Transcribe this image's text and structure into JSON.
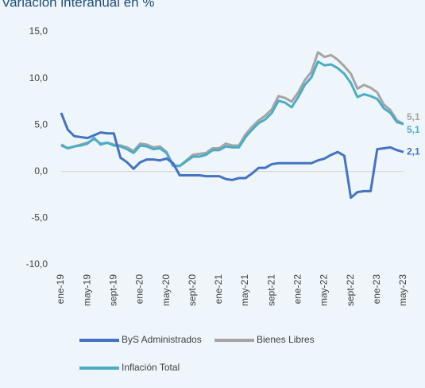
{
  "chart_data": {
    "type": "line",
    "title": "Variación interanual en %",
    "categories": [
      "ene-19",
      null,
      null,
      null,
      "may-19",
      null,
      null,
      null,
      "sept-19",
      null,
      null,
      null,
      "ene-20",
      null,
      null,
      null,
      "may-20",
      null,
      null,
      null,
      "sept-20",
      null,
      null,
      null,
      "ene-21",
      null,
      null,
      null,
      "may-21",
      null,
      null,
      null,
      "sept-21",
      null,
      null,
      null,
      "ene-22",
      null,
      null,
      null,
      "may-22",
      null,
      null,
      null,
      "sept-22",
      null,
      null,
      null,
      "ene-23",
      null,
      null,
      null,
      "may-23"
    ],
    "ylim": [
      -10,
      15
    ],
    "yticks": [
      {
        "value": -10,
        "label": "-10,0"
      },
      {
        "value": -5,
        "label": "-5,0"
      },
      {
        "value": 0,
        "label": "0,0"
      },
      {
        "value": 5,
        "label": "5,0"
      },
      {
        "value": 10,
        "label": "10,0"
      },
      {
        "value": 15,
        "label": "15,0"
      }
    ],
    "series": [
      {
        "name": "ByS Administrados",
        "color": "#4472c4",
        "values": [
          6.3,
          4.5,
          3.8,
          3.7,
          3.6,
          3.9,
          4.2,
          4.1,
          4.1,
          1.5,
          1.0,
          0.3,
          1.0,
          1.3,
          1.3,
          1.2,
          1.4,
          0.9,
          -0.4,
          -0.4,
          -0.4,
          -0.4,
          -0.5,
          -0.5,
          -0.5,
          -0.8,
          -0.9,
          -0.7,
          -0.7,
          -0.2,
          0.4,
          0.4,
          0.8,
          0.9,
          0.9,
          0.9,
          0.9,
          0.9,
          0.9,
          1.2,
          1.4,
          1.8,
          2.1,
          1.7,
          -2.8,
          -2.2,
          -2.1,
          -2.1,
          2.4,
          2.5,
          2.6,
          2.3,
          2.1
        ],
        "value_labels": {
          "52": "2,1"
        }
      },
      {
        "name": "Bienes Libres",
        "color": "#a5a5a5",
        "values": [
          2.8,
          2.5,
          2.7,
          2.9,
          3.1,
          3.5,
          3.0,
          3.1,
          2.9,
          2.8,
          2.6,
          2.2,
          3.0,
          2.9,
          2.6,
          2.7,
          2.1,
          0.7,
          0.6,
          1.2,
          1.8,
          1.9,
          2.0,
          2.5,
          2.5,
          3.0,
          2.8,
          2.8,
          4.0,
          4.8,
          5.5,
          6.0,
          6.7,
          8.1,
          7.9,
          7.5,
          8.5,
          9.8,
          10.7,
          12.8,
          12.3,
          12.5,
          12.0,
          11.3,
          10.5,
          8.9,
          9.3,
          9.0,
          8.5,
          7.2,
          6.6,
          5.5,
          5.1
        ],
        "value_labels": {
          "52": "5,1"
        }
      },
      {
        "name": "Inflación Total",
        "color": "#4bacc6",
        "values": [
          2.9,
          2.5,
          2.7,
          2.8,
          3.0,
          3.6,
          2.9,
          3.1,
          2.8,
          2.7,
          2.4,
          2.0,
          2.8,
          2.7,
          2.4,
          2.5,
          2.0,
          0.6,
          0.6,
          1.1,
          1.6,
          1.6,
          1.8,
          2.3,
          2.3,
          2.7,
          2.6,
          2.6,
          3.7,
          4.5,
          5.2,
          5.6,
          6.3,
          7.6,
          7.4,
          6.9,
          8.0,
          9.3,
          10.1,
          11.8,
          11.4,
          11.5,
          11.1,
          10.5,
          9.5,
          8.0,
          8.3,
          8.1,
          7.8,
          6.8,
          6.3,
          5.3,
          5.1
        ],
        "value_labels": {
          "52": "5,1"
        }
      }
    ]
  }
}
